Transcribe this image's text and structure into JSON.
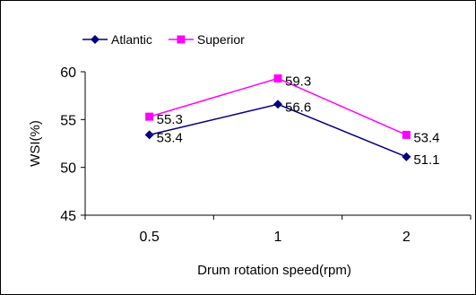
{
  "chart_data": {
    "type": "line",
    "title": "",
    "xlabel": "Drum rotation speed(rpm)",
    "ylabel": "WSI(%)",
    "categories": [
      "0.5",
      "1",
      "2"
    ],
    "ylim": [
      45,
      60
    ],
    "yticks": [
      45,
      50,
      55,
      60
    ],
    "grid": false,
    "legend_position": "top-left",
    "series": [
      {
        "name": "Atlantic",
        "values": [
          53.4,
          56.6,
          51.1
        ],
        "labels": [
          "53.4",
          "56.6",
          "51.1"
        ],
        "color": "#000080",
        "marker": "diamond"
      },
      {
        "name": "Superior",
        "values": [
          55.3,
          59.3,
          53.4
        ],
        "labels": [
          "55.3",
          "59.3",
          "53.4"
        ],
        "color": "#FF00FF",
        "marker": "square"
      }
    ]
  }
}
